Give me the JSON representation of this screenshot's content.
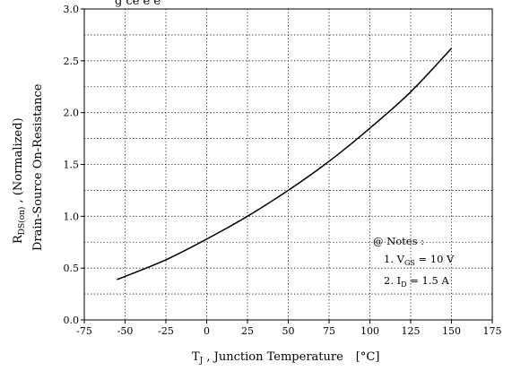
{
  "chart_data": {
    "type": "line",
    "title": "",
    "partial_title": "g           ce       e   e",
    "xlabel": {
      "symbol": "T",
      "subscript": "J",
      "text": " , Junction Temperature",
      "unit": "[°C]"
    },
    "ylabel": {
      "line1_symbol": "R",
      "line1_subscript": "DS(on)",
      "line1_text": " ,   (Normalized)",
      "line2": "Drain-Source On-Resistance"
    },
    "xlim": [
      -75,
      175
    ],
    "ylim": [
      0.0,
      3.0
    ],
    "xticks": [
      -75,
      -50,
      -25,
      0,
      25,
      50,
      75,
      100,
      125,
      150,
      175
    ],
    "yticks": [
      0.0,
      0.5,
      1.0,
      1.5,
      2.0,
      2.5,
      3.0
    ],
    "xtick_labels": [
      "-75",
      "-50",
      "-25",
      "0",
      "25",
      "50",
      "75",
      "100",
      "125",
      "150",
      "175"
    ],
    "ytick_labels": [
      "0.0",
      "0.5",
      "1.0",
      "1.5",
      "2.0",
      "2.5",
      "3.0"
    ],
    "grid": true,
    "series": [
      {
        "x": [
          -55,
          -50,
          -25,
          0,
          25,
          50,
          75,
          100,
          125,
          150
        ],
        "y": [
          0.39,
          0.42,
          0.58,
          0.78,
          1.0,
          1.25,
          1.53,
          1.85,
          2.2,
          2.62
        ]
      }
    ],
    "notes": {
      "header": "@ Notes :",
      "lines": [
        {
          "prefix": "1. V",
          "subscript": "GS",
          "suffix": " = 10 V"
        },
        {
          "prefix": "2. I",
          "subscript": "D",
          "suffix": " = 1.5 A"
        }
      ]
    }
  }
}
